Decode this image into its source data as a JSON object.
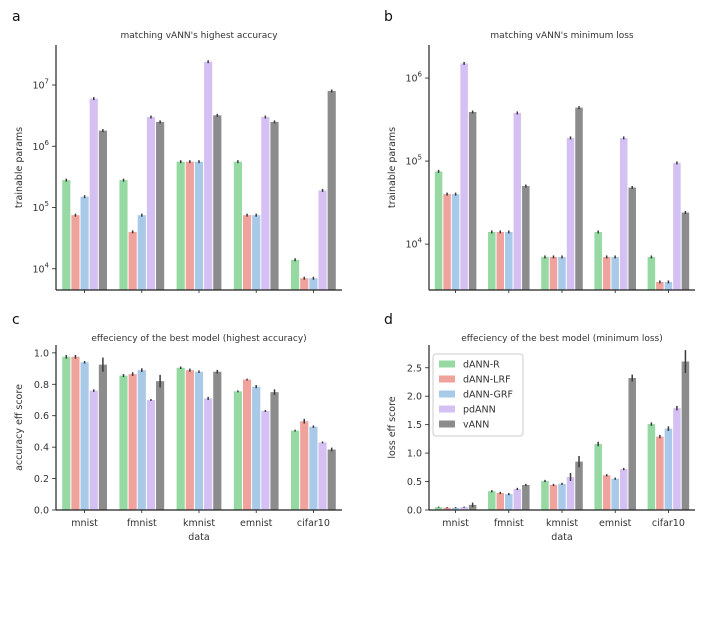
{
  "colors": {
    "dANN-R": "#96d9a2",
    "dANN-LRF": "#f0a29c",
    "dANN-GRF": "#a8c9e8",
    "pdANN": "#d4c0f2",
    "vANN": "#8c8c8c"
  },
  "legend": {
    "entries": [
      "dANN-R",
      "dANN-LRF",
      "dANN-GRF",
      "pdANN",
      "vANN"
    ]
  },
  "chart_data": [
    {
      "letter": "a",
      "type": "bar",
      "title": "matching vANN's highest accuracy",
      "xlabel": "",
      "ylabel": "trainable params",
      "yscale": "log",
      "ylim": [
        4500,
        45000000
      ],
      "yticks": [
        {
          "v": 10000,
          "base": "10",
          "exp": "4"
        },
        {
          "v": 100000,
          "base": "10",
          "exp": "5"
        },
        {
          "v": 1000000,
          "base": "10",
          "exp": "6"
        },
        {
          "v": 10000000,
          "base": "10",
          "exp": "7"
        }
      ],
      "categories": [
        "mnist",
        "fmnist",
        "kmnist",
        "emnist",
        "cifar10"
      ],
      "show_xticklabels": false,
      "series": [
        {
          "name": "dANN-R",
          "values": [
            280000,
            280000,
            560000,
            560000,
            14000
          ],
          "err": [
            0,
            0,
            0,
            0,
            0
          ]
        },
        {
          "name": "dANN-LRF",
          "values": [
            75000,
            40000,
            560000,
            75000,
            7000
          ],
          "err": [
            0,
            0,
            0,
            0,
            0
          ]
        },
        {
          "name": "dANN-GRF",
          "values": [
            150000,
            75000,
            560000,
            75000,
            7000
          ],
          "err": [
            0,
            0,
            0,
            0,
            0
          ]
        },
        {
          "name": "pdANN",
          "values": [
            6000000,
            3000000,
            24000000,
            3000000,
            190000
          ],
          "err": [
            0,
            0,
            0,
            0,
            0
          ]
        },
        {
          "name": "vANN",
          "values": [
            1800000,
            2500000,
            3200000,
            2500000,
            8000000
          ],
          "err": [
            0,
            0,
            0,
            0,
            0
          ]
        }
      ]
    },
    {
      "letter": "b",
      "type": "bar",
      "title": "matching vANN's minimum loss",
      "xlabel": "",
      "ylabel": "trainable params",
      "yscale": "log",
      "ylim": [
        2800,
        2500000
      ],
      "yticks": [
        {
          "v": 10000,
          "base": "10",
          "exp": "4"
        },
        {
          "v": 100000,
          "base": "10",
          "exp": "5"
        },
        {
          "v": 1000000,
          "base": "10",
          "exp": "6"
        }
      ],
      "categories": [
        "mnist",
        "fmnist",
        "kmnist",
        "emnist",
        "cifar10"
      ],
      "show_xticklabels": false,
      "series": [
        {
          "name": "dANN-R",
          "values": [
            75000,
            14000,
            7000,
            14000,
            7000
          ],
          "err": [
            0,
            0,
            0,
            0,
            0
          ]
        },
        {
          "name": "dANN-LRF",
          "values": [
            40000,
            14000,
            7000,
            7000,
            3500
          ],
          "err": [
            0,
            0,
            0,
            0,
            0
          ]
        },
        {
          "name": "dANN-GRF",
          "values": [
            40000,
            14000,
            7000,
            7000,
            3500
          ],
          "err": [
            0,
            0,
            0,
            0,
            0
          ]
        },
        {
          "name": "pdANN",
          "values": [
            1500000,
            380000,
            190000,
            190000,
            95000
          ],
          "err": [
            0,
            0,
            0,
            0,
            0
          ]
        },
        {
          "name": "vANN",
          "values": [
            390000,
            50000,
            440000,
            48000,
            24000
          ],
          "err": [
            0,
            0,
            0,
            0,
            0
          ]
        }
      ]
    },
    {
      "letter": "c",
      "type": "bar",
      "title": "effeciency of the best model (highest accuracy)",
      "xlabel": "data",
      "ylabel": "accuracy eff score",
      "yscale": "linear",
      "ylim": [
        0,
        1.05
      ],
      "yticks": [
        {
          "v": 0,
          "label": "0.0"
        },
        {
          "v": 0.2,
          "label": "0.2"
        },
        {
          "v": 0.4,
          "label": "0.4"
        },
        {
          "v": 0.6,
          "label": "0.6"
        },
        {
          "v": 0.8,
          "label": "0.8"
        },
        {
          "v": 1.0,
          "label": "1.0"
        }
      ],
      "categories": [
        "mnist",
        "fmnist",
        "kmnist",
        "emnist",
        "cifar10"
      ],
      "show_xticklabels": true,
      "series": [
        {
          "name": "dANN-R",
          "values": [
            0.975,
            0.855,
            0.905,
            0.755,
            0.505
          ],
          "err": [
            0.012,
            0.01,
            0.008,
            0.006,
            0.006
          ]
        },
        {
          "name": "dANN-LRF",
          "values": [
            0.975,
            0.865,
            0.89,
            0.83,
            0.565
          ],
          "err": [
            0.012,
            0.012,
            0.01,
            0.006,
            0.015
          ]
        },
        {
          "name": "dANN-GRF",
          "values": [
            0.94,
            0.89,
            0.88,
            0.785,
            0.53
          ],
          "err": [
            0.008,
            0.012,
            0.008,
            0.01,
            0.008
          ]
        },
        {
          "name": "pdANN",
          "values": [
            0.76,
            0.7,
            0.71,
            0.63,
            0.43
          ],
          "err": [
            0.008,
            0.006,
            0.01,
            0.006,
            0.006
          ]
        },
        {
          "name": "vANN",
          "values": [
            0.925,
            0.82,
            0.88,
            0.75,
            0.385
          ],
          "err": [
            0.045,
            0.04,
            0.012,
            0.018,
            0.012
          ]
        }
      ]
    },
    {
      "letter": "d",
      "type": "bar",
      "title": "effeciency of the best model (minimum loss)",
      "xlabel": "data",
      "ylabel": "loss eff score",
      "yscale": "linear",
      "ylim": [
        0,
        2.9
      ],
      "yticks": [
        {
          "v": 0,
          "label": "0.0"
        },
        {
          "v": 0.5,
          "label": "0.5"
        },
        {
          "v": 1.0,
          "label": "1.0"
        },
        {
          "v": 1.5,
          "label": "1.5"
        },
        {
          "v": 2.0,
          "label": "2.0"
        },
        {
          "v": 2.5,
          "label": "2.5"
        }
      ],
      "categories": [
        "mnist",
        "fmnist",
        "kmnist",
        "emnist",
        "cifar10"
      ],
      "show_xticklabels": true,
      "legend": true,
      "series": [
        {
          "name": "dANN-R",
          "values": [
            0.05,
            0.33,
            0.51,
            1.16,
            1.51
          ],
          "err": [
            0.01,
            0.02,
            0.02,
            0.04,
            0.03
          ]
        },
        {
          "name": "dANN-LRF",
          "values": [
            0.04,
            0.3,
            0.44,
            0.61,
            1.29
          ],
          "err": [
            0.01,
            0.02,
            0.02,
            0.02,
            0.03
          ]
        },
        {
          "name": "dANN-GRF",
          "values": [
            0.04,
            0.28,
            0.46,
            0.55,
            1.43
          ],
          "err": [
            0.01,
            0.02,
            0.02,
            0.02,
            0.04
          ]
        },
        {
          "name": "pdANN",
          "values": [
            0.05,
            0.37,
            0.58,
            0.72,
            1.79
          ],
          "err": [
            0.01,
            0.02,
            0.07,
            0.02,
            0.04
          ]
        },
        {
          "name": "vANN",
          "values": [
            0.09,
            0.44,
            0.85,
            2.32,
            2.61
          ],
          "err": [
            0.04,
            0.02,
            0.1,
            0.06,
            0.2
          ]
        }
      ]
    }
  ]
}
